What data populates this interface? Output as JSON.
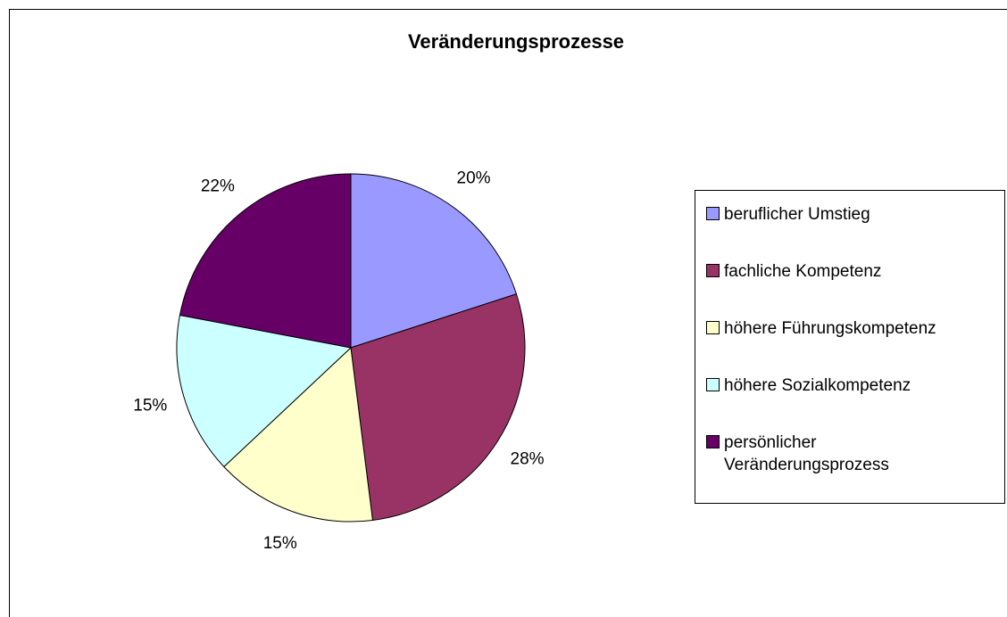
{
  "chart_data": {
    "type": "pie",
    "title": "Veränderungsprozesse",
    "categories": [
      "beruflicher Umstieg",
      "fachliche Kompetenz",
      "höhere Führungskompetenz",
      "höhere Sozialkompetenz",
      "persönlicher\nVeränderungsprozess"
    ],
    "values": [
      20,
      28,
      15,
      15,
      22
    ],
    "value_labels": [
      "20%",
      "28%",
      "15%",
      "15%",
      "22%"
    ],
    "colors": [
      "#9999ff",
      "#993366",
      "#ffffcc",
      "#ccffff",
      "#660066"
    ],
    "legend": "right"
  }
}
